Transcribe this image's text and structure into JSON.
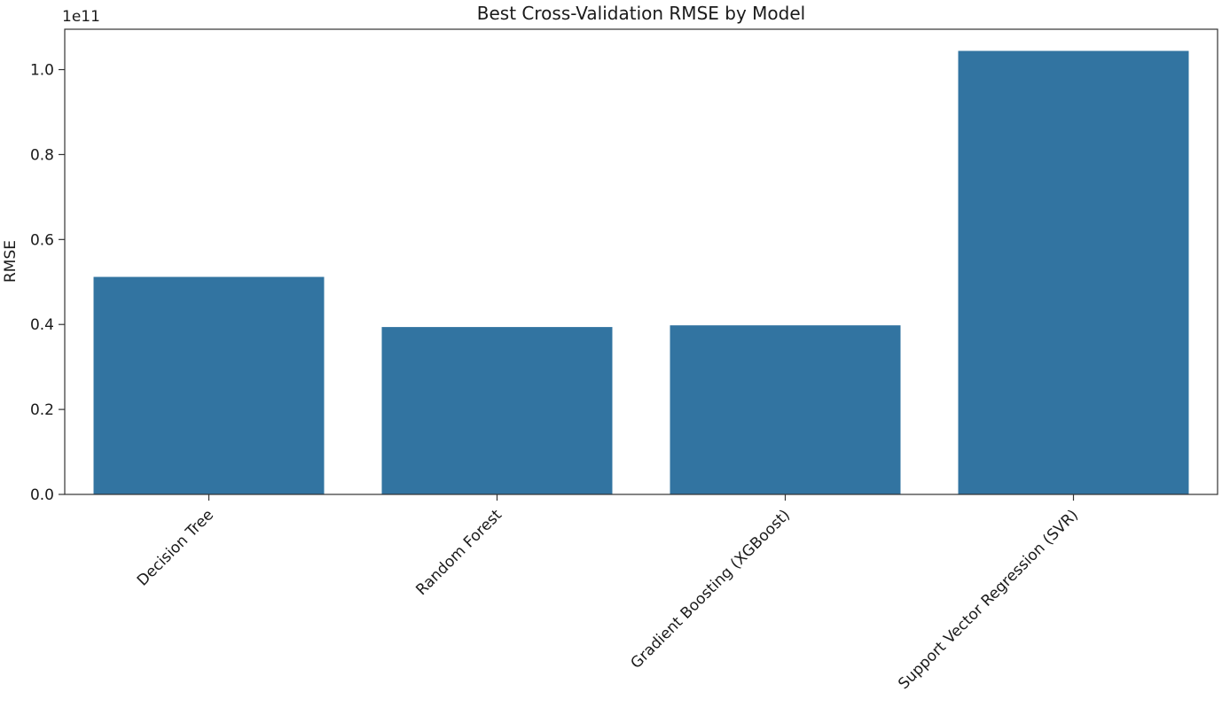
{
  "chart_data": {
    "type": "bar",
    "title": "Best Cross-Validation RMSE by Model",
    "xlabel": "",
    "ylabel": "RMSE",
    "y_offset_label": "1e11",
    "categories": [
      "Decision Tree",
      "Random Forest",
      "Gradient Boosting (XGBoost)",
      "Support Vector Regression (SVR)"
    ],
    "values": [
      0.512,
      0.394,
      0.398,
      1.044
    ],
    "values_scale": 100000000000.0,
    "ylim": [
      0,
      1.095
    ],
    "yticks": [
      0.0,
      0.2,
      0.4,
      0.6,
      0.8,
      1.0
    ],
    "ytick_labels": [
      "0.0",
      "0.2",
      "0.4",
      "0.6",
      "0.8",
      "1.0"
    ],
    "bar_color": "#3274a1",
    "grid": false,
    "legend": "none"
  }
}
